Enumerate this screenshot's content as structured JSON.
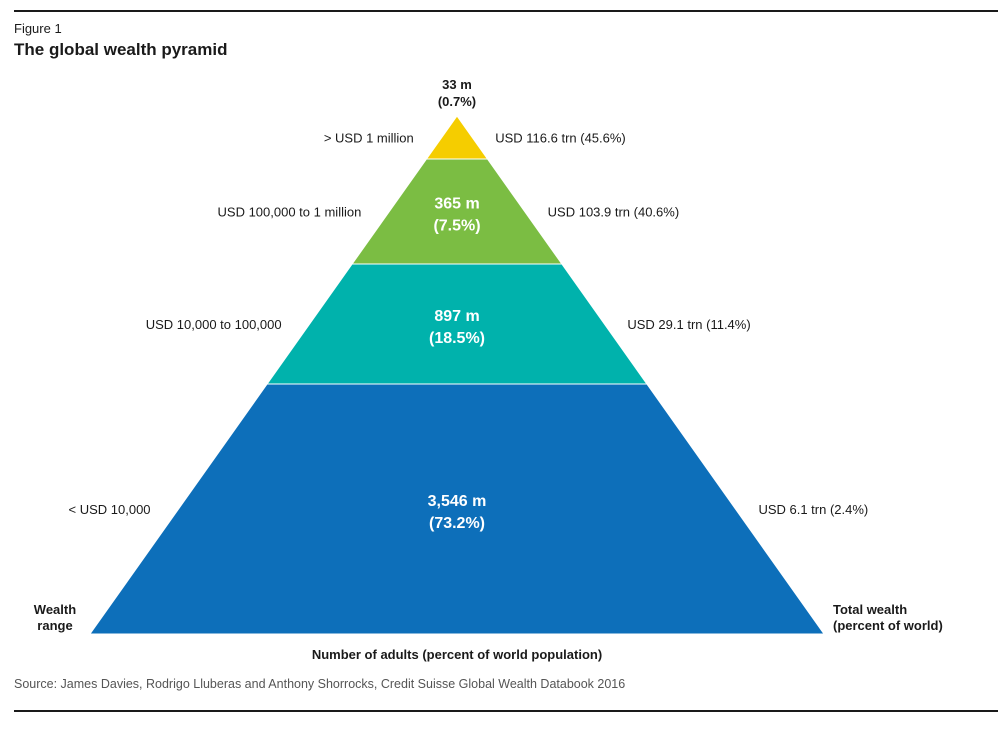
{
  "figure": {
    "label": "Figure 1",
    "title": "The global wealth pyramid",
    "source": "Source: James Davies, Rodrigo Lluberas and Anthony Shorrocks, Credit Suisse Global Wealth Databook 2016"
  },
  "chart_data": {
    "type": "pyramid",
    "title": "The global wealth pyramid",
    "xlabel": "Number of adults (percent of world population)",
    "left_axis_label": [
      "Wealth",
      "range"
    ],
    "right_axis_label": [
      "Total wealth",
      "(percent of world)"
    ],
    "tiers": [
      {
        "wealth_range": "> USD 1 million",
        "adults_label": "33 m",
        "adults_pct_label": "(0.7%)",
        "adults_millions": 33,
        "adults_pct": 0.7,
        "total_wealth_label": "USD 116.6 trn (45.6%)",
        "total_wealth_trn": 116.6,
        "total_wealth_pct": 45.6,
        "color": "#f5cd00"
      },
      {
        "wealth_range": "USD 100,000 to 1 million",
        "adults_label": "365 m",
        "adults_pct_label": "(7.5%)",
        "adults_millions": 365,
        "adults_pct": 7.5,
        "total_wealth_label": "USD 103.9 trn (40.6%)",
        "total_wealth_trn": 103.9,
        "total_wealth_pct": 40.6,
        "color": "#7bbd43"
      },
      {
        "wealth_range": "USD 10,000 to 100,000",
        "adults_label": "897 m",
        "adults_pct_label": "(18.5%)",
        "adults_millions": 897,
        "adults_pct": 18.5,
        "total_wealth_label": "USD 29.1 trn (11.4%)",
        "total_wealth_trn": 29.1,
        "total_wealth_pct": 11.4,
        "color": "#00b2ac"
      },
      {
        "wealth_range": "< USD 10,000",
        "adults_label": "3,546 m",
        "adults_pct_label": "(73.2%)",
        "adults_millions": 3546,
        "adults_pct": 73.2,
        "total_wealth_label": "USD 6.1 trn (2.4%)",
        "total_wealth_trn": 6.1,
        "total_wealth_pct": 2.4,
        "color": "#0d6fba"
      }
    ]
  }
}
